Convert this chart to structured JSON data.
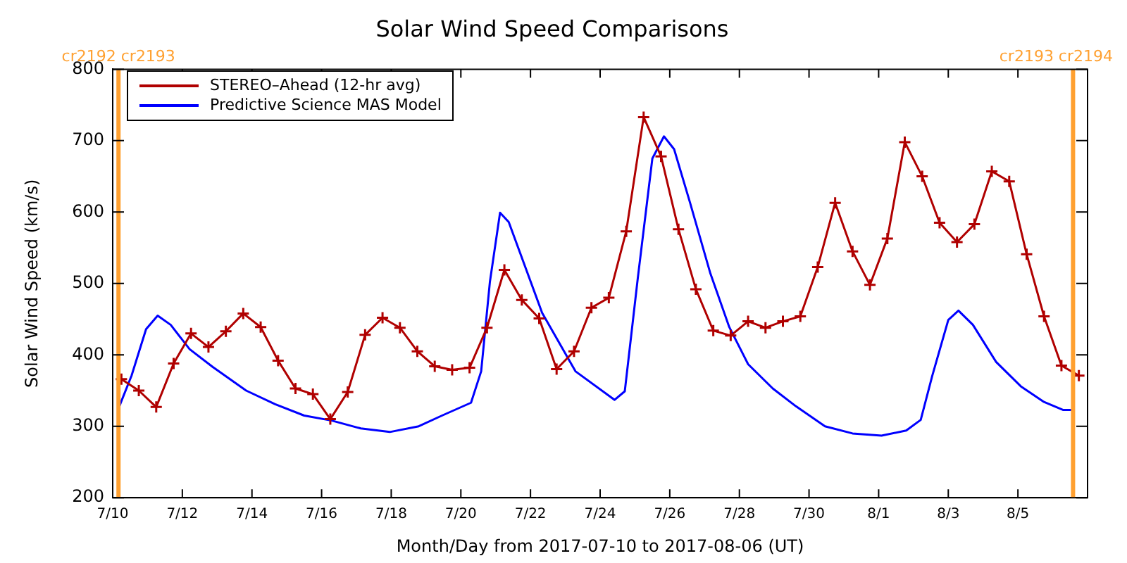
{
  "chart_data": {
    "type": "line",
    "title": "Solar Wind Speed Comparisons",
    "xlabel": "Month/Day from 2017-07-10 to 2017-08-06 (UT)",
    "ylabel": "Solar Wind Speed (km/s)",
    "xlim": [
      "2017-07-10",
      "2017-08-07"
    ],
    "xticks": [
      {
        "value": "2017-07-10",
        "label": "7/10"
      },
      {
        "value": "2017-07-12",
        "label": "7/12"
      },
      {
        "value": "2017-07-14",
        "label": "7/14"
      },
      {
        "value": "2017-07-16",
        "label": "7/16"
      },
      {
        "value": "2017-07-18",
        "label": "7/18"
      },
      {
        "value": "2017-07-20",
        "label": "7/20"
      },
      {
        "value": "2017-07-22",
        "label": "7/22"
      },
      {
        "value": "2017-07-24",
        "label": "7/24"
      },
      {
        "value": "2017-07-26",
        "label": "7/26"
      },
      {
        "value": "2017-07-28",
        "label": "7/28"
      },
      {
        "value": "2017-07-30",
        "label": "7/30"
      },
      {
        "value": "2017-08-01",
        "label": "8/1"
      },
      {
        "value": "2017-08-03",
        "label": "8/3"
      },
      {
        "value": "2017-08-05",
        "label": "8/5"
      }
    ],
    "ylim": [
      200,
      800
    ],
    "yticks": [
      200,
      300,
      400,
      500,
      600,
      700,
      800
    ],
    "grid": false,
    "legend": "top left",
    "ref_lines": [
      {
        "axis": "x",
        "value": "2017-07-10T04:00",
        "label": "cr2192 cr2193",
        "color": "#ffa030"
      },
      {
        "axis": "x",
        "value": "2017-08-06T14:00",
        "label": "cr2193 cr2194",
        "color": "#ffa030"
      }
    ],
    "series": [
      {
        "name": "STEREO–Ahead (12-hr avg)",
        "color": "#b00000",
        "marker": "cross",
        "x": [
          "2017-07-10T06:00",
          "2017-07-10T18:00",
          "2017-07-11T06:00",
          "2017-07-11T18:00",
          "2017-07-12T06:00",
          "2017-07-12T18:00",
          "2017-07-13T06:00",
          "2017-07-13T18:00",
          "2017-07-14T06:00",
          "2017-07-14T18:00",
          "2017-07-15T06:00",
          "2017-07-15T18:00",
          "2017-07-16T06:00",
          "2017-07-16T18:00",
          "2017-07-17T06:00",
          "2017-07-17T18:00",
          "2017-07-18T06:00",
          "2017-07-18T18:00",
          "2017-07-19T06:00",
          "2017-07-19T18:00",
          "2017-07-20T06:00",
          "2017-07-20T18:00",
          "2017-07-21T06:00",
          "2017-07-21T18:00",
          "2017-07-22T06:00",
          "2017-07-22T18:00",
          "2017-07-23T06:00",
          "2017-07-23T18:00",
          "2017-07-24T06:00",
          "2017-07-24T18:00",
          "2017-07-25T06:00",
          "2017-07-25T18:00",
          "2017-07-26T06:00",
          "2017-07-26T18:00",
          "2017-07-27T06:00",
          "2017-07-27T18:00",
          "2017-07-28T06:00",
          "2017-07-28T18:00",
          "2017-07-29T06:00",
          "2017-07-29T18:00",
          "2017-07-30T06:00",
          "2017-07-30T18:00",
          "2017-07-31T06:00",
          "2017-07-31T18:00",
          "2017-08-01T06:00",
          "2017-08-01T18:00",
          "2017-08-02T06:00",
          "2017-08-02T18:00",
          "2017-08-03T06:00",
          "2017-08-03T18:00",
          "2017-08-04T06:00",
          "2017-08-04T18:00",
          "2017-08-05T06:00",
          "2017-08-05T18:00",
          "2017-08-06T06:00",
          "2017-08-06T18:00"
        ],
        "values": [
          366,
          350,
          327,
          388,
          430,
          411,
          433,
          458,
          439,
          392,
          353,
          345,
          310,
          348,
          428,
          452,
          438,
          405,
          384,
          379,
          382,
          438,
          519,
          477,
          451,
          380,
          405,
          466,
          480,
          573,
          733,
          678,
          576,
          492,
          434,
          427,
          447,
          438,
          447,
          454,
          523,
          613,
          545,
          498,
          563,
          698,
          650,
          585,
          558,
          583,
          657,
          643,
          541,
          454,
          385,
          371
        ]
      },
      {
        "name": "Predictive Science MAS Model",
        "color": "#0000ff",
        "marker": "none",
        "x": [
          "2017-07-10T04:00",
          "2017-07-10T13:00",
          "2017-07-10T23:00",
          "2017-07-11T07:00",
          "2017-07-11T16:00",
          "2017-07-12T05:00",
          "2017-07-12T21:00",
          "2017-07-13T20:00",
          "2017-07-14T16:00",
          "2017-07-15T12:00",
          "2017-07-16T07:00",
          "2017-07-17T03:00",
          "2017-07-17T23:00",
          "2017-07-18T19:00",
          "2017-07-19T11:00",
          "2017-07-20T07:00",
          "2017-07-20T14:00",
          "2017-07-20T20:00",
          "2017-07-21T03:00",
          "2017-07-21T09:00",
          "2017-07-22T08:00",
          "2017-07-23T07:00",
          "2017-07-24T10:00",
          "2017-07-24T17:00",
          "2017-07-25T02:00",
          "2017-07-25T12:00",
          "2017-07-25T20:00",
          "2017-07-26T03:00",
          "2017-07-26T14:00",
          "2017-07-27T04:00",
          "2017-07-27T17:00",
          "2017-07-28T06:00",
          "2017-07-28T23:00",
          "2017-07-29T15:00",
          "2017-07-30T11:00",
          "2017-07-31T06:00",
          "2017-08-01T02:00",
          "2017-08-01T19:00",
          "2017-08-02T05:00",
          "2017-08-02T13:00",
          "2017-08-03T00:00",
          "2017-08-03T07:00",
          "2017-08-03T17:00",
          "2017-08-04T09:00",
          "2017-08-05T02:00",
          "2017-08-05T18:00",
          "2017-08-06T07:00",
          "2017-08-06T15:00"
        ],
        "values": [
          325,
          371,
          436,
          455,
          442,
          408,
          383,
          350,
          331,
          315,
          308,
          297,
          292,
          300,
          315,
          333,
          377,
          502,
          599,
          586,
          459,
          377,
          337,
          349,
          508,
          675,
          706,
          688,
          613,
          514,
          439,
          387,
          353,
          328,
          300,
          290,
          287,
          294,
          309,
          371,
          449,
          462,
          442,
          390,
          356,
          334,
          323,
          323
        ]
      }
    ]
  }
}
